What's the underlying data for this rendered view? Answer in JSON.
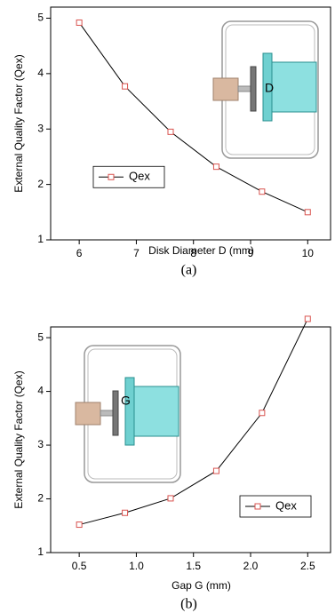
{
  "chart_data": [
    {
      "type": "line",
      "caption": "(a)",
      "xlabel": "Disk Diameter D (mm)",
      "ylabel": "External Quality Factor (Qex)",
      "inset_label": "D",
      "x": [
        6,
        6.8,
        7.6,
        8.4,
        9.2,
        10
      ],
      "series": [
        {
          "name": "Qex",
          "color": "#000000",
          "marker_color": "#d9534f",
          "values": [
            4.92,
            3.77,
            2.95,
            2.32,
            1.87,
            1.5
          ]
        }
      ],
      "xlim": [
        5.5,
        10.4
      ],
      "ylim": [
        1,
        5.2
      ],
      "xticks": [
        6,
        7,
        8,
        9,
        10
      ],
      "yticks": [
        1,
        2,
        3,
        4,
        5
      ],
      "legend": "center-left"
    },
    {
      "type": "line",
      "caption": "(b)",
      "xlabel": "Gap G (mm)",
      "ylabel": "External Quality Factor (Qex)",
      "inset_label": "G",
      "x": [
        0.5,
        0.9,
        1.3,
        1.7,
        2.1,
        2.5
      ],
      "series": [
        {
          "name": "Qex",
          "color": "#000000",
          "marker_color": "#d9534f",
          "values": [
            1.52,
            1.74,
            2.01,
            2.52,
            3.6,
            5.35
          ]
        }
      ],
      "xlim": [
        0.25,
        2.7
      ],
      "ylim": [
        1,
        5.2
      ],
      "xticks": [
        0.5,
        {
          "value": 1,
          "label": "1.0"
        },
        1.5,
        {
          "value": 2,
          "label": "2.0"
        },
        2.5
      ],
      "yticks": [
        1,
        2,
        3,
        4,
        5
      ],
      "legend": "lower-right"
    }
  ]
}
